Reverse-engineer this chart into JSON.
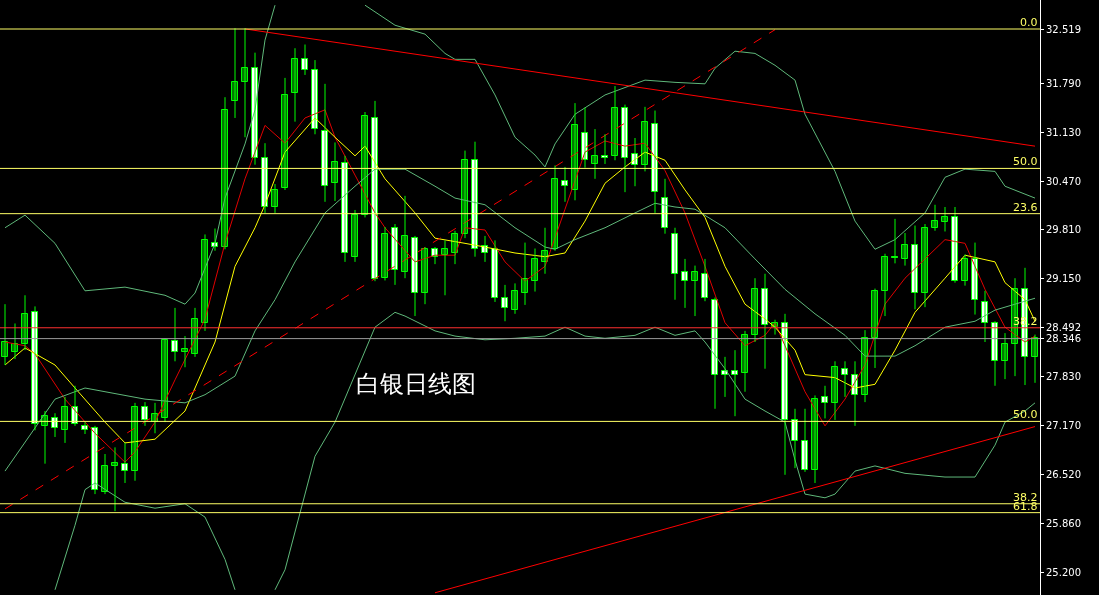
{
  "chart_data": {
    "type": "candlestick",
    "categories": [
      null,
      null,
      null,
      null,
      null,
      null,
      null,
      null,
      null,
      null,
      null,
      null,
      null,
      null,
      null,
      null,
      null,
      null,
      null,
      null,
      null,
      null,
      null,
      null,
      null,
      null,
      null,
      null,
      null,
      null,
      null,
      null,
      null,
      null,
      null,
      null,
      null,
      null,
      null,
      null,
      null,
      null,
      null,
      null,
      null,
      null,
      null,
      null,
      null,
      null,
      null,
      null,
      null,
      null,
      null,
      null,
      null,
      null,
      null,
      null,
      null,
      null,
      null,
      null,
      null,
      null,
      null,
      null,
      null,
      null,
      null,
      null,
      null,
      null,
      null,
      null,
      null,
      null,
      null,
      null,
      null,
      null,
      null,
      null,
      null,
      null,
      null,
      null,
      null,
      null,
      null,
      null,
      null,
      null,
      null,
      null,
      null,
      null,
      null,
      null,
      null,
      null,
      null,
      null
    ],
    "ohlc": [
      [
        28.1,
        28.81,
        27.99,
        28.3
      ],
      [
        28.16,
        28.55,
        28.07,
        28.27
      ],
      [
        28.27,
        28.93,
        28.19,
        28.68
      ],
      [
        28.7,
        28.78,
        27.11,
        27.2
      ],
      [
        27.17,
        27.37,
        26.66,
        27.3
      ],
      [
        27.28,
        27.34,
        27.02,
        27.14
      ],
      [
        27.11,
        27.56,
        26.94,
        27.42
      ],
      [
        27.42,
        27.71,
        27.17,
        27.19
      ],
      [
        27.17,
        27.22,
        27.06,
        27.11
      ],
      [
        27.14,
        27.17,
        26.25,
        26.3
      ],
      [
        26.28,
        26.79,
        26.25,
        26.63
      ],
      [
        26.63,
        26.88,
        26.02,
        26.67
      ],
      [
        26.66,
        26.94,
        26.4,
        26.56
      ],
      [
        26.56,
        27.48,
        26.43,
        27.42
      ],
      [
        27.42,
        27.49,
        27.17,
        27.25
      ],
      [
        27.22,
        27.48,
        27.07,
        27.33
      ],
      [
        27.28,
        28.35,
        27.22,
        28.33
      ],
      [
        28.31,
        28.76,
        28.04,
        28.16
      ],
      [
        28.16,
        28.38,
        27.96,
        28.2
      ],
      [
        28.14,
        28.76,
        28.1,
        28.61
      ],
      [
        28.56,
        29.75,
        28.45,
        29.67
      ],
      [
        29.63,
        29.83,
        29.53,
        29.58
      ],
      [
        29.58,
        31.6,
        29.55,
        31.43
      ],
      [
        31.55,
        32.53,
        31.32,
        31.8
      ],
      [
        31.8,
        32.53,
        31.06,
        31.99
      ],
      [
        31.99,
        32.2,
        30.69,
        30.78
      ],
      [
        30.78,
        30.98,
        30.04,
        30.12
      ],
      [
        30.12,
        30.43,
        30.04,
        30.35
      ],
      [
        30.37,
        31.86,
        30.35,
        31.63
      ],
      [
        31.66,
        32.26,
        31.27,
        32.11
      ],
      [
        32.11,
        32.31,
        31.9,
        31.97
      ],
      [
        31.97,
        32.1,
        31.1,
        31.17
      ],
      [
        31.14,
        31.78,
        30.19,
        30.4
      ],
      [
        30.44,
        30.99,
        30.2,
        30.73
      ],
      [
        30.71,
        30.81,
        29.38,
        29.5
      ],
      [
        29.45,
        30.08,
        29.38,
        30.01
      ],
      [
        30.01,
        31.4,
        29.98,
        31.35
      ],
      [
        31.32,
        31.55,
        29.12,
        29.15
      ],
      [
        29.16,
        29.85,
        29.13,
        29.75
      ],
      [
        29.84,
        29.89,
        29.07,
        29.27
      ],
      [
        29.24,
        30.27,
        29.16,
        29.73
      ],
      [
        29.7,
        29.73,
        28.65,
        28.96
      ],
      [
        28.96,
        29.58,
        28.81,
        29.55
      ],
      [
        29.55,
        29.58,
        29.35,
        29.45
      ],
      [
        29.47,
        29.67,
        28.93,
        29.55
      ],
      [
        29.5,
        29.8,
        29.35,
        29.75
      ],
      [
        29.75,
        30.88,
        29.7,
        30.75
      ],
      [
        30.75,
        31.0,
        29.45,
        29.55
      ],
      [
        29.6,
        29.73,
        29.38,
        29.5
      ],
      [
        29.55,
        29.67,
        28.84,
        28.9
      ],
      [
        28.9,
        29.07,
        28.58,
        28.76
      ],
      [
        28.73,
        29.09,
        28.68,
        28.99
      ],
      [
        28.96,
        29.64,
        28.8,
        29.15
      ],
      [
        29.12,
        29.56,
        28.98,
        29.42
      ],
      [
        29.38,
        29.84,
        29.22,
        29.53
      ],
      [
        29.55,
        30.68,
        29.53,
        30.5
      ],
      [
        30.47,
        30.66,
        30.19,
        30.4
      ],
      [
        30.35,
        31.52,
        30.21,
        31.22
      ],
      [
        31.12,
        31.46,
        30.65,
        30.75
      ],
      [
        30.7,
        31.17,
        30.5,
        30.81
      ],
      [
        30.81,
        31.1,
        30.7,
        30.78
      ],
      [
        30.81,
        31.75,
        30.75,
        31.45
      ],
      [
        31.45,
        31.5,
        30.32,
        30.78
      ],
      [
        30.83,
        31.05,
        30.4,
        30.68
      ],
      [
        30.68,
        31.47,
        30.6,
        31.26
      ],
      [
        31.24,
        31.42,
        30.04,
        30.32
      ],
      [
        30.24,
        30.5,
        29.76,
        29.84
      ],
      [
        29.75,
        29.84,
        28.87,
        29.22
      ],
      [
        29.24,
        29.42,
        28.76,
        29.12
      ],
      [
        29.12,
        29.33,
        28.65,
        29.24
      ],
      [
        29.22,
        29.42,
        28.85,
        28.9
      ],
      [
        28.87,
        28.9,
        27.4,
        27.86
      ],
      [
        27.91,
        28.1,
        27.56,
        27.86
      ],
      [
        27.91,
        28.19,
        27.3,
        27.85
      ],
      [
        27.88,
        28.45,
        27.63,
        28.39
      ],
      [
        28.39,
        29.16,
        28.3,
        29.01
      ],
      [
        29.01,
        29.22,
        27.94,
        28.53
      ],
      [
        28.5,
        28.6,
        28.4,
        28.56
      ],
      [
        28.56,
        28.68,
        26.51,
        27.25
      ],
      [
        27.25,
        27.4,
        26.6,
        26.97
      ],
      [
        26.97,
        27.4,
        26.55,
        26.57
      ],
      [
        26.57,
        27.58,
        26.4,
        27.53
      ],
      [
        27.56,
        27.71,
        27.27,
        27.48
      ],
      [
        27.48,
        28.04,
        27.25,
        27.96
      ],
      [
        27.94,
        28.04,
        27.56,
        27.85
      ],
      [
        27.85,
        28.04,
        27.17,
        27.58
      ],
      [
        27.58,
        28.46,
        27.49,
        28.35
      ],
      [
        28.35,
        29.02,
        27.95,
        28.99
      ],
      [
        28.99,
        29.49,
        28.65,
        29.45
      ],
      [
        29.44,
        29.96,
        29.36,
        29.43
      ],
      [
        29.42,
        29.77,
        29.33,
        29.61
      ],
      [
        29.61,
        29.87,
        28.74,
        28.96
      ],
      [
        28.96,
        29.89,
        28.77,
        29.84
      ],
      [
        29.84,
        30.15,
        29.8,
        29.93
      ],
      [
        29.92,
        30.12,
        29.79,
        29.98
      ],
      [
        29.98,
        30.12,
        29.1,
        29.12
      ],
      [
        29.12,
        29.48,
        29.06,
        29.42
      ],
      [
        29.42,
        29.64,
        28.67,
        28.87
      ],
      [
        28.84,
        28.99,
        28.3,
        28.55
      ],
      [
        28.55,
        28.58,
        27.71,
        28.04
      ],
      [
        28.04,
        28.42,
        27.8,
        28.27
      ],
      [
        28.27,
        29.16,
        27.84,
        29.01
      ],
      [
        29.01,
        29.3,
        27.72,
        28.1
      ],
      [
        28.1,
        28.4,
        27.75,
        28.35
      ]
    ],
    "series": [
      {
        "type": "line",
        "color": "#e00000",
        "values": [
          28.3,
          null,
          28.25,
          28.14,
          null,
          null,
          27.53,
          null,
          null,
          27.07,
          null,
          null,
          26.68,
          26.82,
          null,
          27.22,
          null,
          27.79,
          null,
          null,
          28.61,
          null,
          29.63,
          null,
          30.5,
          null,
          31.22,
          null,
          30.98,
          null,
          31.32,
          null,
          31.43,
          31.06,
          null,
          30.55,
          null,
          30.04,
          29.84,
          null,
          null,
          29.38,
          null,
          29.47,
          null,
          29.47,
          29.84,
          null,
          29.81,
          null,
          29.38,
          null,
          29.12,
          null,
          29.32,
          null,
          30.09,
          null,
          30.86,
          null,
          31.01,
          null,
          30.94,
          null,
          30.98,
          null,
          30.61,
          null,
          30.04,
          null,
          29.32,
          null,
          28.56,
          null,
          28.25,
          null,
          28.39,
          28.56,
          null,
          null,
          27.63,
          null,
          27.17,
          null,
          27.53,
          null,
          27.99,
          null,
          28.81,
          null,
          29.16,
          null,
          29.42,
          null,
          29.68,
          null,
          29.63,
          null,
          29.01,
          null,
          28.5,
          null,
          28.3,
          28.38
        ]
      },
      {
        "type": "line",
        "color": "#ffff00",
        "values": [
          27.99,
          null,
          28.22,
          null,
          null,
          27.99,
          null,
          27.68,
          null,
          null,
          27.22,
          null,
          26.94,
          null,
          null,
          26.99,
          null,
          null,
          27.37,
          null,
          null,
          28.3,
          null,
          29.32,
          null,
          29.84,
          30.15,
          null,
          30.86,
          null,
          null,
          31.32,
          null,
          31.06,
          null,
          30.81,
          30.94,
          null,
          30.5,
          null,
          null,
          30.04,
          null,
          29.7,
          null,
          null,
          29.63,
          null,
          29.58,
          null,
          null,
          29.5,
          null,
          null,
          29.45,
          null,
          29.5,
          null,
          29.93,
          null,
          30.44,
          null,
          30.66,
          null,
          30.86,
          null,
          30.75,
          null,
          30.35,
          null,
          29.98,
          null,
          29.32,
          null,
          28.81,
          null,
          28.61,
          28.5,
          null,
          28.19,
          27.86,
          null,
          null,
          27.82,
          null,
          27.68,
          null,
          27.73,
          null,
          28.19,
          null,
          28.7,
          null,
          null,
          29.16,
          null,
          29.47,
          null,
          null,
          29.38,
          29.1,
          null,
          28.87,
          28.58
        ]
      },
      {
        "type": "line",
        "color": "#5fb87a",
        "values": [
          29.84,
          null,
          30.01,
          null,
          null,
          29.63,
          null,
          null,
          28.99,
          null,
          null,
          null,
          29.04,
          null,
          null,
          null,
          28.93,
          null,
          28.81,
          28.96,
          null,
          29.63,
          30.24,
          null,
          30.97,
          31.43,
          32.37,
          32.84,
          null,
          null,
          null,
          null,
          null,
          null,
          null,
          null,
          null,
          null,
          null,
          null,
          null,
          null,
          null,
          null,
          null,
          null,
          null,
          null,
          null,
          null,
          null,
          null,
          null,
          null,
          null,
          null,
          null,
          null,
          null,
          null,
          null,
          null,
          null,
          null,
          null,
          null,
          null,
          null,
          null,
          null,
          null,
          null,
          null,
          null,
          null,
          null,
          null,
          null,
          null,
          null,
          null,
          null,
          null,
          null,
          null,
          null,
          null,
          null,
          null,
          null,
          null,
          null,
          null,
          null,
          null,
          null,
          null,
          null,
          null,
          null,
          null,
          null,
          null,
          null
        ]
      },
      {
        "type": "line",
        "color": "#5fb87a",
        "values": [
          null,
          null,
          null,
          null,
          null,
          null,
          null,
          null,
          null,
          null,
          null,
          null,
          null,
          null,
          null,
          null,
          null,
          null,
          null,
          null,
          null,
          null,
          null,
          null,
          null,
          null,
          null,
          null,
          null,
          null,
          null,
          null,
          null,
          null,
          null,
          null,
          32.84,
          null,
          null,
          32.57,
          null,
          null,
          32.45,
          null,
          32.19,
          32.11,
          null,
          32.11,
          null,
          31.63,
          null,
          31.06,
          null,
          30.82,
          30.66,
          30.97,
          null,
          31.37,
          null,
          null,
          31.63,
          null,
          null,
          null,
          31.83,
          null,
          null,
          31.8,
          null,
          null,
          31.78,
          31.99,
          null,
          32.22,
          null,
          32.19,
          null,
          32.03,
          null,
          31.83,
          31.37,
          null,
          null,
          30.6,
          null,
          29.93,
          null,
          29.55,
          null,
          29.68,
          null,
          null,
          30.04,
          null,
          30.52,
          null,
          30.63,
          null,
          null,
          30.6,
          30.4,
          null,
          null,
          30.24
        ]
      },
      {
        "type": "line",
        "color": "#5fb87a",
        "values": [
          26.56,
          null,
          null,
          null,
          null,
          27.53,
          null,
          null,
          27.68,
          null,
          null,
          null,
          null,
          null,
          27.53,
          null,
          null,
          null,
          27.48,
          null,
          27.59,
          null,
          null,
          27.84,
          null,
          28.45,
          null,
          28.87,
          null,
          29.38,
          null,
          null,
          30.04,
          null,
          null,
          30.4,
          null,
          30.63,
          null,
          null,
          30.63,
          null,
          null,
          30.4,
          null,
          30.24,
          null,
          null,
          30.15,
          null,
          null,
          29.84,
          null,
          null,
          29.58,
          29.55,
          null,
          29.68,
          null,
          null,
          29.84,
          null,
          null,
          30.04,
          null,
          30.17,
          null,
          30.12,
          null,
          30.09,
          null,
          null,
          29.84,
          null,
          null,
          29.42,
          null,
          null,
          29.01,
          null,
          null,
          28.68,
          null,
          null,
          28.39,
          null,
          28.11,
          null,
          null,
          28.11,
          null,
          28.25,
          null,
          null,
          28.5,
          null,
          null,
          28.58,
          null,
          28.73,
          null,
          28.81,
          null,
          28.89
        ]
      },
      {
        "type": "line",
        "color": "#5fb87a",
        "values": [
          null,
          null,
          null,
          null,
          null,
          24.96,
          null,
          25.83,
          26.31,
          26.4,
          null,
          null,
          26.14,
          null,
          null,
          26.06,
          null,
          null,
          26.12,
          null,
          25.94,
          null,
          25.37,
          24.96,
          null,
          null,
          null,
          null,
          null,
          null,
          null,
          null,
          null,
          null,
          null,
          null,
          null,
          null,
          null,
          null,
          null,
          null,
          null,
          null,
          null,
          null,
          null,
          null,
          null,
          null,
          null,
          null,
          null,
          null,
          null,
          null,
          null,
          null,
          null,
          null,
          null,
          null,
          null,
          null,
          null,
          null,
          null,
          null,
          null,
          null,
          null,
          null,
          null,
          null,
          null,
          null,
          null,
          null,
          null,
          null,
          null,
          null,
          null,
          null,
          null,
          null,
          null,
          null,
          null,
          null,
          null,
          null,
          null,
          null,
          null,
          null,
          null,
          null,
          null,
          null,
          null,
          null,
          null,
          null
        ]
      },
      {
        "type": "line",
        "color": "#5fb87a",
        "values": [
          null,
          null,
          null,
          null,
          null,
          null,
          null,
          null,
          null,
          null,
          null,
          null,
          null,
          null,
          null,
          null,
          null,
          null,
          null,
          null,
          null,
          null,
          null,
          null,
          null,
          null,
          null,
          24.96,
          25.23,
          null,
          null,
          26.76,
          null,
          27.22,
          null,
          null,
          null,
          28.5,
          null,
          28.7,
          28.65,
          null,
          null,
          28.45,
          null,
          28.38,
          null,
          null,
          28.33,
          null,
          null,
          28.35,
          null,
          null,
          28.38,
          null,
          28.5,
          null,
          28.38,
          null,
          28.35,
          null,
          null,
          28.39,
          null,
          28.5,
          null,
          28.39,
          null,
          28.45,
          28.3,
          null,
          27.94,
          null,
          27.53,
          null,
          27.37,
          null,
          27.22,
          26.71,
          26.25,
          null,
          26.2,
          26.25,
          null,
          26.56,
          null,
          26.63,
          null,
          null,
          26.53,
          null,
          null,
          null,
          26.48,
          null,
          null,
          26.48,
          null,
          26.91,
          27.22,
          null,
          27.37,
          27.48
        ]
      },
      {
        "type": "line",
        "color": "#ff0000",
        "values": [
          null,
          null,
          null,
          null,
          null,
          null,
          null,
          null,
          null,
          null,
          null,
          null,
          null,
          null,
          null,
          null,
          null,
          null,
          null,
          null,
          null,
          null,
          null,
          null,
          32.52,
          null,
          null,
          null,
          null,
          null,
          null,
          null,
          null,
          null,
          null,
          null,
          null,
          null,
          null,
          null,
          null,
          null,
          null,
          null,
          null,
          null,
          null,
          null,
          null,
          null,
          null,
          null,
          null,
          null,
          null,
          null,
          null,
          null,
          null,
          null,
          null,
          null,
          null,
          null,
          null,
          null,
          null,
          null,
          null,
          null,
          null,
          null,
          null,
          null,
          null,
          null,
          null,
          null,
          null,
          null,
          null,
          null,
          null,
          null,
          null,
          null,
          null,
          null,
          null,
          null,
          null,
          null,
          null,
          null,
          null,
          null,
          null,
          null,
          null,
          null,
          null,
          null,
          null,
          30.94
        ]
      },
      {
        "type": "line",
        "color": "#ff0000",
        "values": [
          null,
          null,
          null,
          null,
          null,
          null,
          null,
          null,
          null,
          null,
          null,
          null,
          null,
          null,
          null,
          null,
          null,
          null,
          null,
          null,
          null,
          null,
          null,
          null,
          null,
          null,
          null,
          null,
          null,
          null,
          null,
          null,
          null,
          null,
          null,
          null,
          null,
          null,
          null,
          null,
          null,
          null,
          null,
          24.92,
          null,
          null,
          null,
          null,
          null,
          null,
          null,
          null,
          null,
          null,
          null,
          null,
          null,
          null,
          null,
          null,
          null,
          null,
          null,
          null,
          null,
          null,
          null,
          null,
          null,
          null,
          null,
          null,
          null,
          null,
          null,
          null,
          null,
          null,
          null,
          null,
          null,
          null,
          null,
          null,
          null,
          null,
          null,
          null,
          null,
          null,
          null,
          null,
          null,
          null,
          null,
          null,
          null,
          null,
          null,
          null,
          null,
          null,
          null,
          27.16
        ]
      },
      {
        "type": "line",
        "color": "#ff0000",
        "line_style": "dashed",
        "values": [
          26.05,
          null,
          null,
          null,
          null,
          null,
          null,
          null,
          null,
          null,
          null,
          null,
          null,
          null,
          null,
          null,
          null,
          null,
          null,
          null,
          null,
          null,
          null,
          null,
          null,
          null,
          null,
          null,
          null,
          null,
          null,
          null,
          null,
          null,
          null,
          null,
          null,
          null,
          null,
          null,
          null,
          null,
          null,
          null,
          null,
          null,
          null,
          null,
          null,
          null,
          null,
          null,
          null,
          null,
          null,
          null,
          null,
          null,
          null,
          null,
          null,
          null,
          null,
          null,
          null,
          null,
          null,
          null,
          null,
          null,
          null,
          null,
          null,
          null,
          null,
          null,
          null,
          32.51,
          null,
          null,
          null,
          null,
          null,
          null,
          null,
          null,
          null,
          null,
          null,
          null,
          null,
          null,
          null,
          null,
          null,
          null,
          null,
          null,
          null,
          null,
          null,
          null,
          null,
          null
        ]
      }
    ],
    "ylim": [
      24.89,
      32.91
    ],
    "yticks": [
      {
        "value": 25.2,
        "label": "25.200"
      },
      {
        "value": 25.86,
        "label": "25.860"
      },
      {
        "value": 26.52,
        "label": "26.520"
      },
      {
        "value": 27.17,
        "label": "27.170"
      },
      {
        "value": 27.83,
        "label": "27.830"
      },
      {
        "value": 28.346,
        "label": "28.346"
      },
      {
        "value": 28.492,
        "label": "28.492"
      },
      {
        "value": 29.15,
        "label": "29.150"
      },
      {
        "value": 29.81,
        "label": "29.810"
      },
      {
        "value": 30.47,
        "label": "30.470"
      },
      {
        "value": 31.13,
        "label": "31.130"
      },
      {
        "value": 31.79,
        "label": "31.790"
      },
      {
        "value": 32.519,
        "label": "32.519"
      }
    ],
    "tick_labels": "y",
    "ref_lines": [
      {
        "axis": "y",
        "value": 32.519,
        "color": "#ffff66"
      },
      {
        "axis": "y",
        "value": 30.64,
        "color": "#ffff66"
      },
      {
        "axis": "y",
        "value": 30.03,
        "color": "#ffff66"
      },
      {
        "axis": "y",
        "value": 28.492,
        "color": "#ff3030"
      },
      {
        "axis": "y",
        "value": 28.346,
        "color": "#9a9a9a"
      },
      {
        "axis": "y",
        "value": 27.23,
        "color": "#ffff66"
      },
      {
        "axis": "y",
        "value": 26.12,
        "color": "#ffff66"
      },
      {
        "axis": "y",
        "value": 26.0,
        "color": "#ffff66"
      }
    ],
    "annotations": [
      "白银日线图",
      {
        "text": "0.0",
        "y": 32.519
      },
      {
        "text": "50.0",
        "y": 30.64
      },
      {
        "text": "23.6",
        "y": 30.03
      },
      {
        "text": "38.2",
        "y": 28.492
      },
      {
        "text": "50.0",
        "y": 27.23
      },
      {
        "text": "38.2",
        "y": 26.12
      },
      {
        "text": "61.8",
        "y": 26.0
      }
    ]
  }
}
